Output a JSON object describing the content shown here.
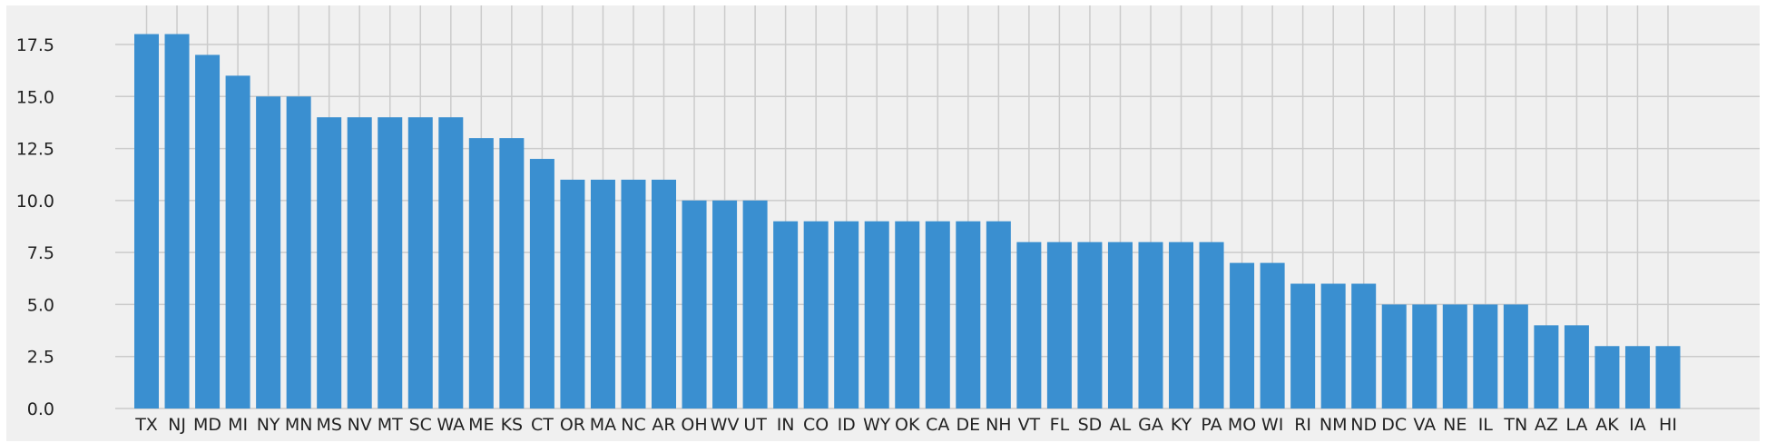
{
  "chart_data": {
    "type": "bar",
    "categories": [
      "TX",
      "NJ",
      "MD",
      "MI",
      "NY",
      "MN",
      "MS",
      "NV",
      "MT",
      "SC",
      "WA",
      "ME",
      "KS",
      "CT",
      "OR",
      "MA",
      "NC",
      "AR",
      "OH",
      "WV",
      "UT",
      "IN",
      "CO",
      "ID",
      "WY",
      "OK",
      "CA",
      "DE",
      "NH",
      "VT",
      "FL",
      "SD",
      "AL",
      "GA",
      "KY",
      "PA",
      "MO",
      "WI",
      "RI",
      "NM",
      "ND",
      "DC",
      "VA",
      "NE",
      "IL",
      "TN",
      "AZ",
      "LA",
      "AK",
      "IA",
      "HI"
    ],
    "values": [
      18,
      18,
      17,
      16,
      15,
      15,
      14,
      14,
      14,
      14,
      14,
      13,
      13,
      12,
      11,
      11,
      11,
      11,
      10,
      10,
      10,
      9,
      9,
      9,
      9,
      9,
      9,
      9,
      9,
      8,
      8,
      8,
      8,
      8,
      8,
      8,
      7,
      7,
      6,
      6,
      6,
      5,
      5,
      5,
      5,
      5,
      4,
      4,
      3,
      3,
      3
    ],
    "title": "",
    "xlabel": "",
    "ylabel": "",
    "ylim": [
      0,
      18.9
    ],
    "yticks": [
      "0.0",
      "2.5",
      "5.0",
      "7.5",
      "10.0",
      "12.5",
      "15.0",
      "17.5"
    ],
    "ytick_values": [
      0,
      2.5,
      5,
      7.5,
      10,
      12.5,
      15,
      17.5
    ],
    "grid": true,
    "legend": "none",
    "colors": {
      "bar": "#3a8fd0",
      "plot_background": "#f0f0f0",
      "grid": "#cbcbcb",
      "page_background": "#ffffff",
      "text": "#222222"
    }
  }
}
